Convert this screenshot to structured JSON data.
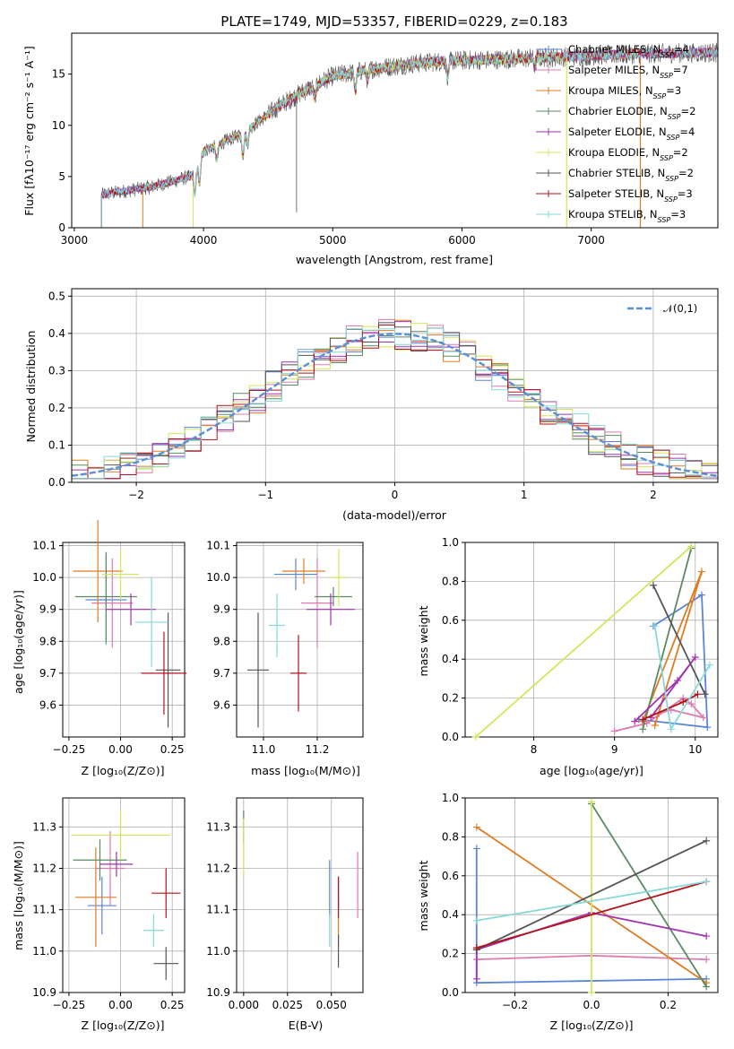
{
  "colors": {
    "Chabrier MILES": "#5b85d6",
    "Salpeter MILES": "#e07ab0",
    "Kroupa MILES": "#e07b22",
    "Chabrier ELODIE": "#5a8a62",
    "Salpeter ELODIE": "#a232b0",
    "Kroupa ELODIE": "#cfe85a",
    "Chabrier STELIB": "#555555",
    "Salpeter STELIB": "#b3141c",
    "Kroupa STELIB": "#86dad8",
    "normal": "#5b8fd6"
  },
  "legend_models": [
    {
      "name": "Chabrier MILES",
      "nssp": "4"
    },
    {
      "name": "Salpeter MILES",
      "nssp": "7"
    },
    {
      "name": "Kroupa MILES",
      "nssp": "3"
    },
    {
      "name": "Chabrier ELODIE",
      "nssp": "2"
    },
    {
      "name": "Salpeter ELODIE",
      "nssp": "4"
    },
    {
      "name": "Kroupa ELODIE",
      "nssp": "2"
    },
    {
      "name": "Chabrier STELIB",
      "nssp": "2"
    },
    {
      "name": "Salpeter STELIB",
      "nssp": "3"
    },
    {
      "name": "Kroupa STELIB",
      "nssp": "3"
    }
  ],
  "legend_suffix": ", N",
  "legend_sub": "SSP",
  "legend_eq": "=",
  "chart_data": [
    {
      "id": "spectrum",
      "type": "line",
      "title": "PLATE=1749, MJD=53357, FIBERID=0229, z=0.183",
      "xlabel": "wavelength [Angstrom, rest frame]",
      "ylabel": "Flux [fλ10⁻¹⁷ erg cm⁻² s⁻¹ A⁻¹]",
      "xlim": [
        2980,
        7980
      ],
      "ylim": [
        0,
        19
      ],
      "xticks": [
        3000,
        4000,
        5000,
        6000,
        7000
      ],
      "yticks": [
        0,
        5,
        10,
        15
      ],
      "grid": false,
      "legend_position": "right",
      "continuum_anchors": [
        [
          3200,
          3.2
        ],
        [
          3600,
          4.0
        ],
        [
          3900,
          5.0
        ],
        [
          4000,
          7.5
        ],
        [
          4300,
          9.2
        ],
        [
          4600,
          12.0
        ],
        [
          4800,
          13.5
        ],
        [
          5000,
          14.8
        ],
        [
          5300,
          15.5
        ],
        [
          5600,
          16.0
        ],
        [
          5900,
          16.3
        ],
        [
          6200,
          16.4
        ],
        [
          6600,
          16.6
        ],
        [
          7000,
          16.8
        ],
        [
          7400,
          17.0
        ],
        [
          7980,
          17.1
        ]
      ],
      "absorption_features": [
        [
          3934,
          2.6
        ],
        [
          3969,
          2.4
        ],
        [
          4102,
          1.5
        ],
        [
          4305,
          2.2
        ],
        [
          4340,
          1.4
        ],
        [
          4861,
          1.2
        ],
        [
          5175,
          1.8
        ],
        [
          5270,
          1.0
        ],
        [
          5890,
          1.5
        ],
        [
          6563,
          0.8
        ]
      ],
      "model_ranges": [
        [
          3210,
          7980
        ],
        [
          3210,
          7980
        ],
        [
          3530,
          7380
        ],
        [
          3210,
          7980
        ],
        [
          3210,
          7980
        ],
        [
          3920,
          6810
        ],
        [
          3210,
          7980
        ],
        [
          3210,
          7980
        ],
        [
          3210,
          7980
        ]
      ]
    },
    {
      "id": "residuals",
      "type": "histogram",
      "xlabel": "(data-model)/error",
      "ylabel": "Normed distribution",
      "xlim": [
        -2.5,
        2.5
      ],
      "ylim": [
        0,
        0.52
      ],
      "xticks": [
        -2,
        -1,
        0,
        1,
        2
      ],
      "yticks": [
        0.0,
        0.1,
        0.2,
        0.3,
        0.4,
        0.5
      ],
      "grid": true,
      "bin_width": 0.125,
      "legend": [
        {
          "name": "𝒩(0,1)",
          "style": "dashed"
        }
      ],
      "legend_position": "top-right"
    },
    {
      "id": "age-vs-Z",
      "type": "errorbar",
      "xlabel": "Z [log₁₀(Z/Z⊙)]",
      "ylabel": "age  [log₁₀(age/yr)]",
      "xlim": [
        -0.28,
        0.31
      ],
      "ylim": [
        9.5,
        10.11
      ],
      "xticks": [
        -0.25,
        0.0,
        0.25
      ],
      "yticks": [
        9.6,
        9.7,
        9.8,
        9.9,
        10.0,
        10.1
      ],
      "points": [
        {
          "x": -0.07,
          "y": 9.93,
          "xerr": 0.1,
          "yerr": 0.14
        },
        {
          "x": -0.04,
          "y": 9.92,
          "xerr": 0.1,
          "yerr": 0.14
        },
        {
          "x": -0.11,
          "y": 10.02,
          "xerr": 0.12,
          "yerr": 0.16
        },
        {
          "x": -0.07,
          "y": 9.94,
          "xerr": 0.15,
          "yerr": 0.14
        },
        {
          "x": 0.05,
          "y": 9.9,
          "xerr": 0.12,
          "yerr": 0.05
        },
        {
          "x": 0.0,
          "y": 10.01,
          "xerr": 0.09,
          "yerr": 0.08
        },
        {
          "x": 0.23,
          "y": 9.71,
          "xerr": 0.06,
          "yerr": 0.18
        },
        {
          "x": 0.21,
          "y": 9.7,
          "xerr": 0.11,
          "yerr": 0.13
        },
        {
          "x": 0.15,
          "y": 9.86,
          "xerr": 0.08,
          "yerr": 0.14
        }
      ]
    },
    {
      "id": "age-vs-mass",
      "type": "errorbar",
      "xlabel": "mass [log₁₀(M/M⊙)]",
      "ylabel": "",
      "xlim": [
        10.9,
        11.37
      ],
      "ylim": [
        9.5,
        10.11
      ],
      "xticks": [
        11.0,
        11.2
      ],
      "yticks": [
        9.6,
        9.7,
        9.8,
        9.9,
        10.0,
        10.1
      ],
      "points": [
        {
          "x": 11.12,
          "y": 10.01,
          "xerr": 0.08,
          "yerr": 0.05
        },
        {
          "x": 11.2,
          "y": 9.92,
          "xerr": 0.06,
          "yerr": 0.14
        },
        {
          "x": 11.15,
          "y": 10.02,
          "xerr": 0.08,
          "yerr": 0.04
        },
        {
          "x": 11.26,
          "y": 9.94,
          "xerr": 0.07,
          "yerr": 0.03
        },
        {
          "x": 11.25,
          "y": 9.9,
          "xerr": 0.09,
          "yerr": 0.05
        },
        {
          "x": 11.28,
          "y": 10.0,
          "xerr": 0.03,
          "yerr": 0.09
        },
        {
          "x": 10.98,
          "y": 9.71,
          "xerr": 0.04,
          "yerr": 0.18
        },
        {
          "x": 11.13,
          "y": 9.7,
          "xerr": 0.03,
          "yerr": 0.12
        },
        {
          "x": 11.05,
          "y": 9.85,
          "xerr": 0.03,
          "yerr": 0.1
        }
      ]
    },
    {
      "id": "weight-vs-age",
      "type": "line",
      "xlabel": "age  [log₁₀(age/yr)]",
      "ylabel": "mass weight",
      "xlim": [
        7.15,
        10.28
      ],
      "ylim": [
        0,
        1
      ],
      "xticks": [
        8,
        9,
        10
      ],
      "yticks": [
        0.0,
        0.2,
        0.4,
        0.6,
        0.8,
        1.0
      ],
      "grid": true,
      "series": [
        [
          [
            9.48,
            0.57
          ],
          [
            10.08,
            0.73
          ],
          [
            10.15,
            0.05
          ],
          [
            9.3,
            0.09
          ]
        ],
        [
          [
            9.0,
            0.03
          ],
          [
            9.4,
            0.07
          ],
          [
            9.85,
            0.2
          ],
          [
            9.95,
            0.17
          ],
          [
            10.1,
            0.1
          ],
          [
            9.7,
            0.14
          ],
          [
            9.55,
            0.12
          ]
        ],
        [
          [
            9.5,
            0.06
          ],
          [
            10.08,
            0.85
          ],
          [
            9.35,
            0.08
          ]
        ],
        [
          [
            9.35,
            0.04
          ],
          [
            9.95,
            0.97
          ]
        ],
        [
          [
            9.25,
            0.08
          ],
          [
            9.78,
            0.29
          ],
          [
            10.0,
            0.41
          ],
          [
            9.45,
            0.1
          ]
        ],
        [
          [
            7.28,
            0.0
          ],
          [
            9.95,
            0.98
          ]
        ],
        [
          [
            9.48,
            0.78
          ],
          [
            10.12,
            0.22
          ]
        ],
        [
          [
            9.35,
            0.09
          ],
          [
            9.85,
            0.18
          ],
          [
            10.03,
            0.22
          ]
        ],
        [
          [
            9.5,
            0.57
          ],
          [
            9.7,
            0.04
          ],
          [
            10.18,
            0.37
          ]
        ]
      ]
    },
    {
      "id": "mass-vs-Z",
      "type": "errorbar",
      "xlabel": "Z [log₁₀(Z/Z⊙)]",
      "ylabel": "mass [log₁₀(M/M⊙)]",
      "xlim": [
        -0.28,
        0.31
      ],
      "ylim": [
        10.9,
        11.37
      ],
      "xticks": [
        -0.25,
        0.0,
        0.25
      ],
      "yticks": [
        10.9,
        11.0,
        11.1,
        11.2,
        11.3
      ],
      "points": [
        {
          "x": -0.09,
          "y": 11.11,
          "xerr": 0.07,
          "yerr": 0.07
        },
        {
          "x": -0.05,
          "y": 11.2,
          "xerr": 0.07,
          "yerr": 0.09
        },
        {
          "x": -0.12,
          "y": 11.13,
          "xerr": 0.1,
          "yerr": 0.12
        },
        {
          "x": -0.1,
          "y": 11.22,
          "xerr": 0.13,
          "yerr": 0.05
        },
        {
          "x": -0.02,
          "y": 11.21,
          "xerr": 0.08,
          "yerr": 0.03
        },
        {
          "x": 0.0,
          "y": 11.28,
          "xerr": 0.24,
          "yerr": 0.06
        },
        {
          "x": 0.22,
          "y": 10.97,
          "xerr": 0.06,
          "yerr": 0.04
        },
        {
          "x": 0.22,
          "y": 11.14,
          "xerr": 0.07,
          "yerr": 0.06
        },
        {
          "x": 0.16,
          "y": 11.05,
          "xerr": 0.05,
          "yerr": 0.04
        }
      ]
    },
    {
      "id": "mass-vs-EBV",
      "type": "errorbar",
      "xlabel": "E(B-V)",
      "ylabel": "",
      "xlim": [
        -0.004,
        0.068
      ],
      "ylim": [
        10.9,
        11.37
      ],
      "xticks": [
        0.0,
        0.025,
        0.05
      ],
      "xtick_labels": [
        "0.000",
        "0.025",
        "0.050"
      ],
      "yticks": [
        10.9,
        11.0,
        11.1,
        11.2,
        11.3
      ],
      "points": [
        {
          "x": 0.049,
          "y": 11.15,
          "xerr": 0.0,
          "yerr": 0.07
        },
        {
          "x": 0.065,
          "y": 11.16,
          "xerr": 0.0,
          "yerr": 0.08
        },
        {
          "x": 0.054,
          "y": 11.07,
          "xerr": 0.0,
          "yerr": 0.06
        },
        {
          "x": 0.0,
          "y": 11.3,
          "xerr": 0.0,
          "yerr": 0.04
        },
        {
          "x": 0.054,
          "y": 11.14,
          "xerr": 0.0,
          "yerr": 0.04
        },
        {
          "x": 0.0,
          "y": 11.25,
          "xerr": 0.0,
          "yerr": 0.07
        },
        {
          "x": 0.054,
          "y": 11.0,
          "xerr": 0.0,
          "yerr": 0.04
        },
        {
          "x": 0.054,
          "y": 11.13,
          "xerr": 0.0,
          "yerr": 0.05
        },
        {
          "x": 0.049,
          "y": 11.05,
          "xerr": 0.0,
          "yerr": 0.04
        }
      ]
    },
    {
      "id": "weight-vs-Z",
      "type": "line",
      "xlabel": "Z [log₁₀(Z/Z⊙)]",
      "ylabel": "mass weight",
      "xlim": [
        -0.33,
        0.33
      ],
      "ylim": [
        0,
        1
      ],
      "xticks": [
        -0.2,
        0.0,
        0.2
      ],
      "yticks": [
        0.0,
        0.2,
        0.4,
        0.6,
        0.8,
        1.0
      ],
      "grid": true,
      "series": [
        [
          [
            -0.3,
            0.74
          ],
          [
            -0.3,
            0.05
          ],
          [
            0.3,
            0.07
          ]
        ],
        [
          [
            -0.3,
            0.17
          ],
          [
            0.0,
            0.19
          ],
          [
            0.3,
            0.17
          ]
        ],
        [
          [
            -0.3,
            0.85
          ],
          [
            0.3,
            0.05
          ]
        ],
        [
          [
            0.0,
            0.97
          ],
          [
            0.3,
            0.03
          ]
        ],
        [
          [
            -0.3,
            0.07
          ],
          [
            -0.3,
            0.22
          ],
          [
            0.0,
            0.41
          ],
          [
            0.3,
            0.29
          ]
        ],
        [
          [
            0.0,
            0.0
          ],
          [
            0.0,
            0.98
          ]
        ],
        [
          [
            -0.3,
            0.22
          ],
          [
            0.3,
            0.78
          ]
        ],
        [
          [
            -0.3,
            0.23
          ],
          [
            0.3,
            0.57
          ]
        ],
        [
          [
            -0.3,
            0.37
          ],
          [
            0.3,
            0.57
          ]
        ]
      ]
    }
  ]
}
